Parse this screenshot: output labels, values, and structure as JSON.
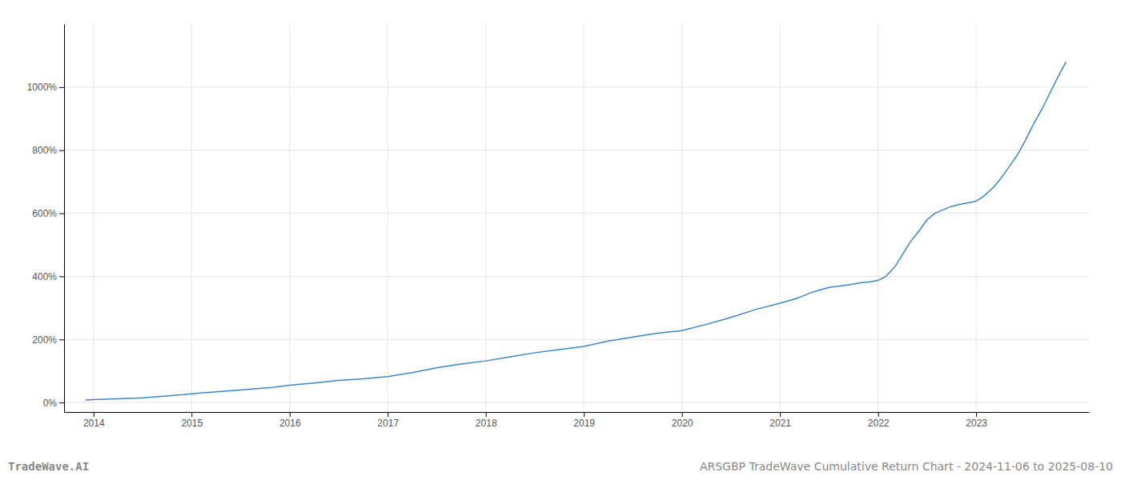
{
  "chart_data": {
    "type": "line",
    "title": "ARSGBP TradeWave Cumulative Return Chart - 2024-11-06 to 2025-08-10",
    "annotations": [
      "TradeWave.AI"
    ],
    "color": "#3a86c8",
    "grid": true,
    "x": [
      2013.92,
      2014.0,
      2014.08,
      2014.17,
      2014.25,
      2014.33,
      2014.42,
      2014.5,
      2014.58,
      2014.67,
      2014.75,
      2014.83,
      2014.92,
      2015.0,
      2015.17,
      2015.33,
      2015.5,
      2015.67,
      2015.83,
      2016.0,
      2016.25,
      2016.5,
      2016.75,
      2017.0,
      2017.25,
      2017.5,
      2017.75,
      2018.0,
      2018.25,
      2018.5,
      2018.75,
      2019.0,
      2019.25,
      2019.5,
      2019.75,
      2020.0,
      2020.25,
      2020.5,
      2020.75,
      2021.0,
      2021.08,
      2021.17,
      2021.25,
      2021.33,
      2021.42,
      2021.5,
      2021.58,
      2021.67,
      2021.75,
      2021.83,
      2021.92,
      2022.0,
      2022.08,
      2022.17,
      2022.25,
      2022.33,
      2022.42,
      2022.5,
      2022.58,
      2022.67,
      2022.75,
      2022.83,
      2022.92,
      2023.0,
      2023.08,
      2023.17,
      2023.25,
      2023.33,
      2023.42,
      2023.5,
      2023.58,
      2023.67,
      2023.75,
      2023.83,
      2023.916
    ],
    "values": [
      8,
      9,
      10,
      11,
      12,
      13,
      14,
      15,
      17,
      19,
      21,
      23,
      25,
      28,
      32,
      36,
      40,
      44,
      48,
      55,
      62,
      70,
      75,
      82,
      95,
      110,
      122,
      132,
      145,
      158,
      168,
      178,
      195,
      208,
      220,
      228,
      248,
      270,
      295,
      315,
      322,
      330,
      340,
      350,
      358,
      365,
      368,
      372,
      376,
      380,
      383,
      387,
      400,
      430,
      470,
      510,
      545,
      580,
      600,
      612,
      622,
      628,
      633,
      638,
      655,
      680,
      710,
      745,
      785,
      830,
      880,
      930,
      980,
      1030,
      1080
    ],
    "xlim": [
      2013.7,
      2024.15
    ],
    "xticks": [
      2014,
      2015,
      2016,
      2017,
      2018,
      2019,
      2020,
      2021,
      2022,
      2023
    ],
    "ylim": [
      -30,
      1200
    ],
    "yticks": [
      {
        "value": 0,
        "label": "0%"
      },
      {
        "value": 200,
        "label": "200%"
      },
      {
        "value": 400,
        "label": "400%"
      },
      {
        "value": 600,
        "label": "600%"
      },
      {
        "value": 800,
        "label": "800%"
      },
      {
        "value": 1000,
        "label": "1000%"
      }
    ]
  }
}
